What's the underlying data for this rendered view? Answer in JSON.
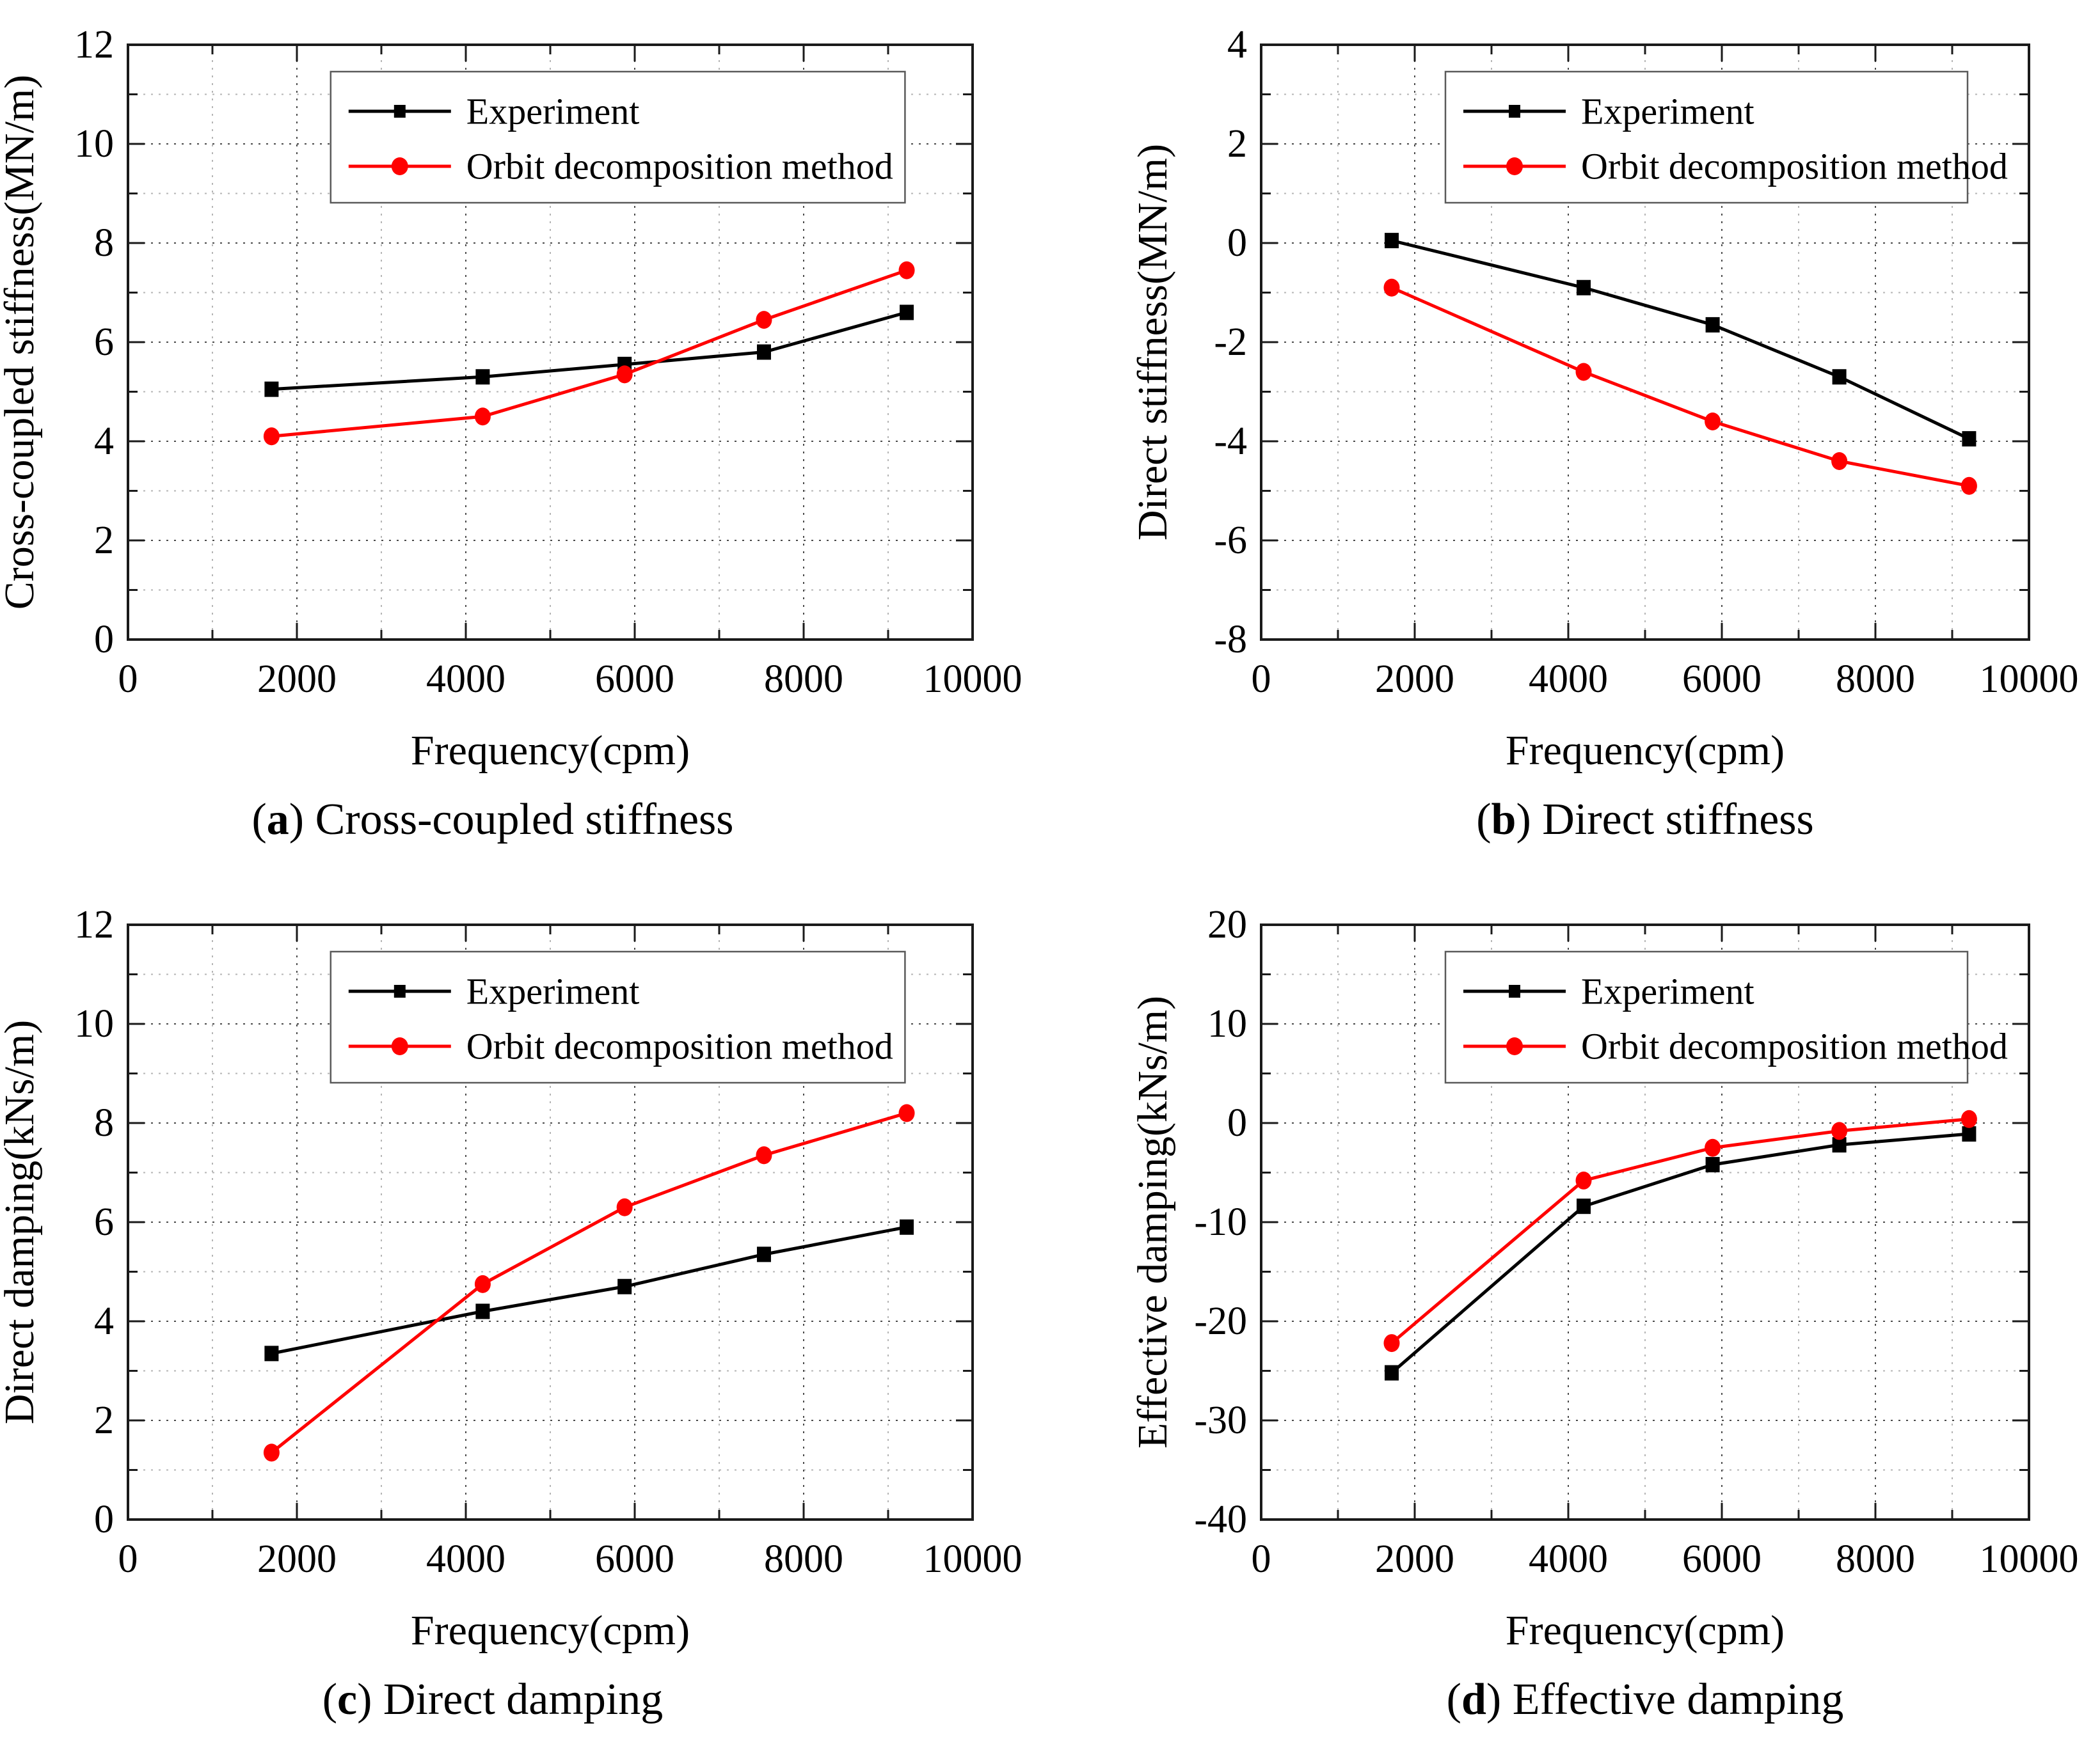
{
  "figure": {
    "background": "#ffffff",
    "series_colors": {
      "experiment": "#000000",
      "orbit": "#ff0000"
    },
    "grid_major_color": "#4a4a4a",
    "grid_minor_color": "#b5b5b5",
    "axis_color": "#1a1a1a",
    "legend_labels": [
      "Experiment",
      "Orbit decomposition method"
    ]
  },
  "chart_data": [
    {
      "id": "a",
      "type": "line",
      "caption_letter": "a",
      "caption": "Cross-coupled stiffness",
      "xlabel": "Frequency(cpm)",
      "ylabel": "Cross-coupled stiffness(MN/m)",
      "xlim": [
        0,
        10000
      ],
      "ylim": [
        0,
        12
      ],
      "xticks": [
        0,
        2000,
        4000,
        6000,
        8000,
        10000
      ],
      "yticks": [
        0,
        2,
        4,
        6,
        8,
        10,
        12
      ],
      "x_minor_step": 1000,
      "y_minor_step": 1,
      "grid": true,
      "legend_position": "top-right",
      "x": [
        1700,
        4200,
        5880,
        7530,
        9220
      ],
      "series": [
        {
          "name": "Experiment",
          "marker": "square",
          "color": "#000000",
          "values": [
            5.05,
            5.3,
            5.55,
            5.8,
            6.6
          ]
        },
        {
          "name": "Orbit decomposition method",
          "marker": "circle",
          "color": "#ff0000",
          "values": [
            4.1,
            4.5,
            5.35,
            6.45,
            7.45
          ]
        }
      ]
    },
    {
      "id": "b",
      "type": "line",
      "caption_letter": "b",
      "caption": "Direct stiffness",
      "xlabel": "Frequency(cpm)",
      "ylabel": "Direct stiffness(MN/m)",
      "xlim": [
        0,
        10000
      ],
      "ylim": [
        -8,
        4
      ],
      "xticks": [
        0,
        2000,
        4000,
        6000,
        8000,
        10000
      ],
      "yticks": [
        -8,
        -6,
        -4,
        -2,
        0,
        2,
        4
      ],
      "x_minor_step": 1000,
      "y_minor_step": 1,
      "grid": true,
      "legend_position": "top-right",
      "x": [
        1700,
        4200,
        5880,
        7530,
        9220
      ],
      "series": [
        {
          "name": "Experiment",
          "marker": "square",
          "color": "#000000",
          "values": [
            0.05,
            -0.9,
            -1.65,
            -2.7,
            -3.95
          ]
        },
        {
          "name": "Orbit decomposition method",
          "marker": "circle",
          "color": "#ff0000",
          "values": [
            -0.9,
            -2.6,
            -3.6,
            -4.4,
            -4.9
          ]
        }
      ]
    },
    {
      "id": "c",
      "type": "line",
      "caption_letter": "c",
      "caption": "Direct damping",
      "xlabel": "Frequency(cpm)",
      "ylabel": "Direct damping(kNs/m)",
      "xlim": [
        0,
        10000
      ],
      "ylim": [
        0,
        12
      ],
      "xticks": [
        0,
        2000,
        4000,
        6000,
        8000,
        10000
      ],
      "yticks": [
        0,
        2,
        4,
        6,
        8,
        10,
        12
      ],
      "x_minor_step": 1000,
      "y_minor_step": 1,
      "grid": true,
      "legend_position": "top-right",
      "x": [
        1700,
        4200,
        5880,
        7530,
        9220
      ],
      "series": [
        {
          "name": "Experiment",
          "marker": "square",
          "color": "#000000",
          "values": [
            3.35,
            4.2,
            4.7,
            5.35,
            5.9
          ]
        },
        {
          "name": "Orbit decomposition method",
          "marker": "circle",
          "color": "#ff0000",
          "values": [
            1.35,
            4.75,
            6.3,
            7.35,
            8.2
          ]
        }
      ]
    },
    {
      "id": "d",
      "type": "line",
      "caption_letter": "d",
      "caption": "Effective damping",
      "xlabel": "Frequency(cpm)",
      "ylabel": "Effective damping(kNs/m)",
      "xlim": [
        0,
        10000
      ],
      "ylim": [
        -40,
        20
      ],
      "xticks": [
        0,
        2000,
        4000,
        6000,
        8000,
        10000
      ],
      "yticks": [
        -40,
        -30,
        -20,
        -10,
        0,
        10,
        20
      ],
      "x_minor_step": 1000,
      "y_minor_step": 5,
      "grid": true,
      "legend_position": "top-right",
      "x": [
        1700,
        4200,
        5880,
        7530,
        9220
      ],
      "series": [
        {
          "name": "Experiment",
          "marker": "square",
          "color": "#000000",
          "values": [
            -25.2,
            -8.4,
            -4.2,
            -2.2,
            -1.1
          ]
        },
        {
          "name": "Orbit decomposition method",
          "marker": "circle",
          "color": "#ff0000",
          "values": [
            -22.2,
            -5.8,
            -2.5,
            -0.8,
            0.4
          ]
        }
      ]
    }
  ]
}
